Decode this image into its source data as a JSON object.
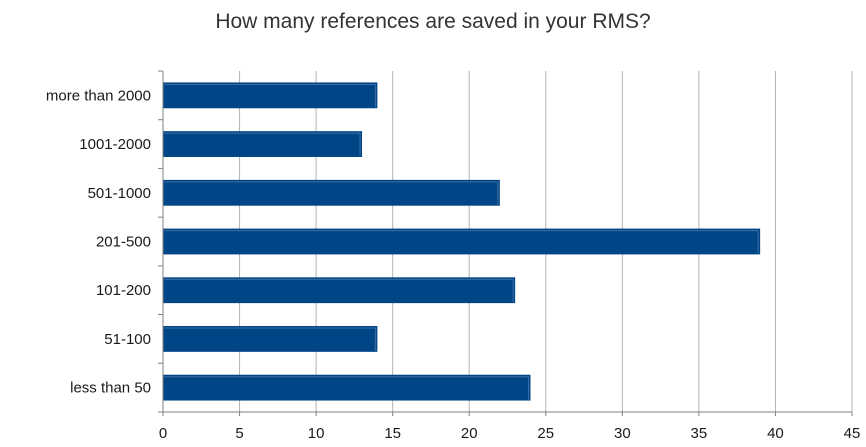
{
  "chart_data": {
    "type": "bar",
    "orientation": "horizontal",
    "title": "How many references are saved in your RMS?",
    "categories": [
      "more than 2000",
      "1001-2000",
      "501-1000",
      "201-500",
      "101-200",
      "51-100",
      "less than 50"
    ],
    "values": [
      14,
      13,
      22,
      39,
      23,
      14,
      24
    ],
    "xticks": [
      0,
      5,
      10,
      15,
      20,
      25,
      30,
      35,
      40,
      45
    ],
    "xlim": [
      0,
      45
    ],
    "xlabel": "",
    "ylabel": "",
    "grid": "vertical",
    "legend": "none",
    "colors": {
      "bar": "#004586",
      "bar_highlight": "#3d6fa5",
      "grid": "#b3b3b3",
      "axis": "#808080",
      "title": "#333333"
    }
  }
}
